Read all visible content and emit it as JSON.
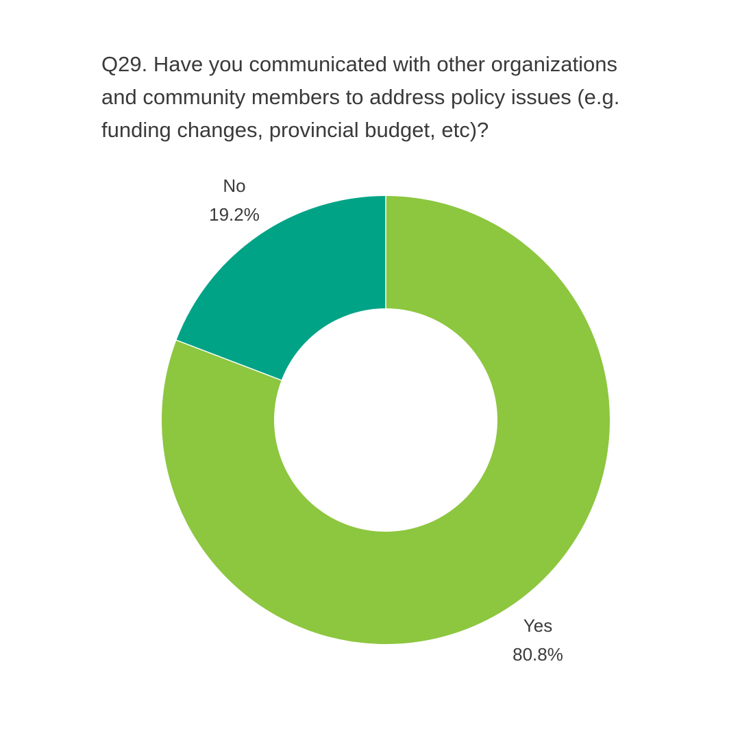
{
  "chart_data": {
    "type": "pie",
    "title_lines": [
      "Q29. Have you communicated with other organizations",
      "and community members to address policy issues (e.g.",
      "funding changes, provincial budget, etc)?"
    ],
    "slices": [
      {
        "label": "Yes",
        "value": 80.8,
        "display": "80.8%",
        "color": "#8dc63f"
      },
      {
        "label": "No",
        "value": 19.2,
        "display": "19.2%",
        "color": "#00a386"
      }
    ],
    "donut": true,
    "start": "12 o'clock",
    "direction": "clockwise"
  }
}
